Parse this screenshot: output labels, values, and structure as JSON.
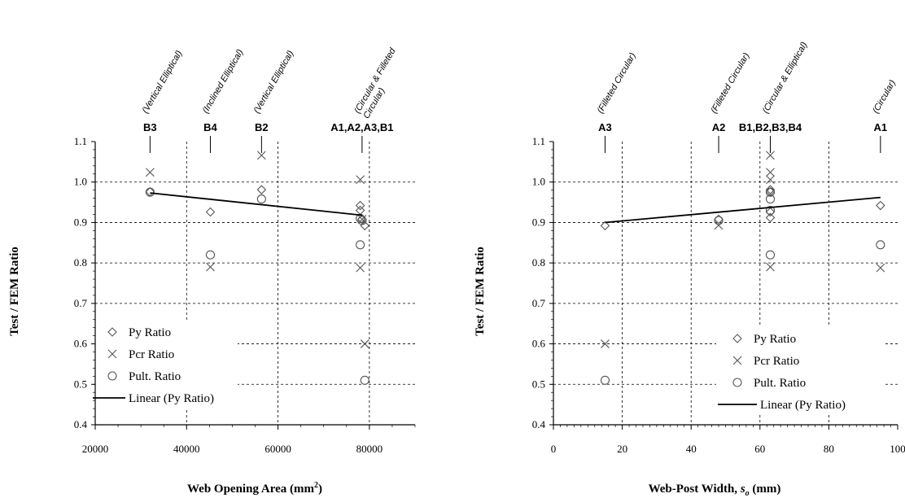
{
  "chart_data": [
    {
      "type": "scatter",
      "xlabel": "Web Opening Area (mm²)",
      "ylabel": "Test / FEM Ratio",
      "xlim": [
        20000,
        90000
      ],
      "ylim": [
        0.4,
        1.1
      ],
      "xticks": [
        "20000",
        "40000",
        "60000",
        "80000"
      ],
      "yticks": [
        "0.4",
        "0.5",
        "0.6",
        "0.7",
        "0.8",
        "0.9",
        "1.0",
        "1.1"
      ],
      "grid": "dashed, partial",
      "legend_position": "bottom-left",
      "series": [
        {
          "name": "Py Ratio",
          "marker": "diamond",
          "x": [
            32000,
            45200,
            56400,
            78000,
            78000,
            78400,
            79000
          ],
          "y": [
            0.976,
            0.926,
            0.981,
            0.942,
            0.93,
            0.908,
            0.892
          ]
        },
        {
          "name": "Pcr Ratio",
          "marker": "x",
          "x": [
            32000,
            45200,
            56400,
            78000,
            78000,
            78400,
            79000
          ],
          "y": [
            1.024,
            0.79,
            1.066,
            1.006,
            0.788,
            0.908,
            0.6
          ]
        },
        {
          "name": "Pult. Ratio",
          "marker": "circle",
          "x": [
            32000,
            45200,
            56400,
            78000,
            78000,
            78400,
            79000
          ],
          "y": [
            0.975,
            0.82,
            0.958,
            0.845,
            0.91,
            0.905,
            0.51
          ]
        },
        {
          "name": "Linear (Py Ratio)",
          "type": "line",
          "x": [
            32000,
            78400
          ],
          "y": [
            0.973,
            0.918
          ]
        }
      ],
      "category_labels": [
        {
          "label": "B3",
          "x": 32000,
          "note": "(Vertical Elliptical)"
        },
        {
          "label": "B4",
          "x": 45200,
          "note": "(Inclined Elliptical)"
        },
        {
          "label": "B2",
          "x": 56400,
          "note": "(Vertical Elliptical)"
        },
        {
          "label": "A1,A2,A3,B1",
          "x": 78400,
          "note": "(Circular & Filleted Circular)"
        }
      ]
    },
    {
      "type": "scatter",
      "xlabel": "Web-Post Width, so (mm)",
      "ylabel": "Test / FEM Ratio",
      "xlim": [
        0,
        100
      ],
      "ylim": [
        0.4,
        1.1
      ],
      "xticks": [
        "0",
        "20",
        "40",
        "60",
        "80",
        "100"
      ],
      "yticks": [
        "0.4",
        "0.5",
        "0.6",
        "0.7",
        "0.8",
        "0.9",
        "1.0",
        "1.1"
      ],
      "grid": "dashed, partial",
      "legend_position": "bottom-right",
      "series": [
        {
          "name": "Py Ratio",
          "marker": "diamond",
          "x": [
            15,
            48,
            63,
            63,
            63,
            63,
            95
          ],
          "y": [
            0.892,
            0.908,
            0.981,
            0.976,
            0.926,
            0.912,
            0.942
          ]
        },
        {
          "name": "Pcr Ratio",
          "marker": "x",
          "x": [
            15,
            48,
            63,
            63,
            63,
            63,
            95
          ],
          "y": [
            0.6,
            0.893,
            1.066,
            1.024,
            1.006,
            0.79,
            0.788
          ]
        },
        {
          "name": "Pult. Ratio",
          "marker": "circle",
          "x": [
            15,
            48,
            63,
            63,
            63,
            63,
            95
          ],
          "y": [
            0.51,
            0.905,
            0.975,
            0.958,
            0.93,
            0.82,
            0.845
          ]
        },
        {
          "name": "Linear (Py Ratio)",
          "type": "line",
          "x": [
            15,
            95
          ],
          "y": [
            0.9,
            0.962
          ]
        }
      ],
      "category_labels": [
        {
          "label": "A3",
          "x": 15,
          "note": "(Filleted Circular)"
        },
        {
          "label": "A2",
          "x": 48,
          "note": "(Filleted Circular)"
        },
        {
          "label": "B1,B2,B3,B4",
          "x": 63,
          "note": "(Circular & Elliptical)"
        },
        {
          "label": "A1",
          "x": 95,
          "note": "(Circular)"
        }
      ]
    }
  ]
}
